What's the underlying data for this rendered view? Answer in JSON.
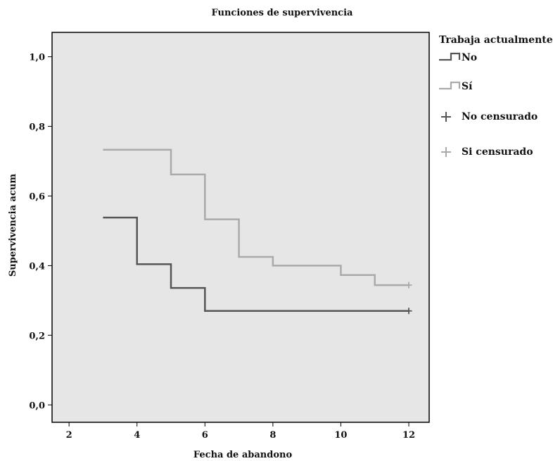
{
  "chart_data": {
    "type": "line",
    "step": true,
    "title": "Funciones de supervivencia",
    "xlabel": "Fecha de abandono",
    "ylabel": "Supervivencia acum",
    "xlim": [
      1.5,
      12.6
    ],
    "ylim": [
      -0.05,
      1.07
    ],
    "xticks": [
      2,
      4,
      6,
      8,
      10,
      12
    ],
    "xtick_labels": [
      "2",
      "4",
      "6",
      "8",
      "10",
      "12"
    ],
    "yticks": [
      0,
      0.2,
      0.4,
      0.6,
      0.8,
      1.0
    ],
    "ytick_labels": [
      "0,0",
      "0,2",
      "0,4",
      "0,6",
      "0,8",
      "1,0"
    ],
    "grid": false,
    "legend_placement": "right-outside",
    "legend_title": "Trabaja actualmente",
    "plot_background": "#e6e6e6",
    "series": [
      {
        "name": "No",
        "color": "#555555",
        "x": [
          3,
          4,
          5,
          6,
          12
        ],
        "y": [
          0.538,
          0.404,
          0.336,
          0.27,
          0.27
        ],
        "censored": [
          {
            "x": 12,
            "y": 0.27
          }
        ]
      },
      {
        "name": "Sí",
        "color": "#aaaaaa",
        "x": [
          3,
          5,
          6,
          7,
          8,
          10,
          11,
          12
        ],
        "y": [
          0.733,
          0.662,
          0.533,
          0.425,
          0.4,
          0.373,
          0.344,
          0.344
        ],
        "censored": [
          {
            "x": 12,
            "y": 0.344
          }
        ]
      }
    ],
    "legend": [
      {
        "label": "No",
        "symbol": "step",
        "color": "#555555"
      },
      {
        "label": "Sí",
        "symbol": "step",
        "color": "#aaaaaa"
      },
      {
        "label": "No censurado",
        "symbol": "plus",
        "color": "#555555"
      },
      {
        "label": "Si censurado",
        "symbol": "plus",
        "color": "#aaaaaa"
      }
    ]
  }
}
